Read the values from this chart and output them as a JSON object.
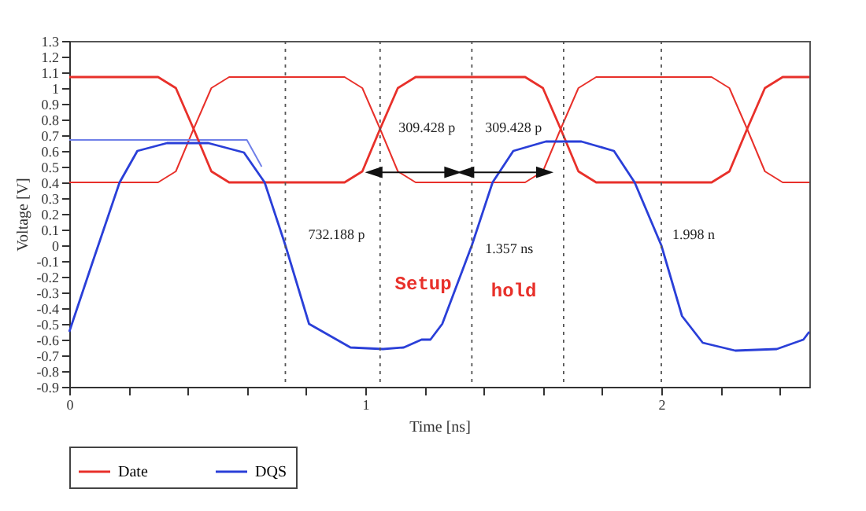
{
  "chart_data": {
    "type": "line",
    "xlabel": "Time [ns]",
    "ylabel": "Voltage [V]",
    "xlim": [
      0,
      2.5
    ],
    "ylim": [
      -0.9,
      1.3
    ],
    "xticks": [
      0,
      {
        "value": 0.2,
        "label": null
      },
      {
        "value": 0.4,
        "label": null
      },
      {
        "value": 0.6,
        "label": null
      },
      {
        "value": 0.8,
        "label": null
      },
      1,
      {
        "value": 1.2,
        "label": null
      },
      {
        "value": 1.4,
        "label": null
      },
      {
        "value": 1.6,
        "label": null
      },
      {
        "value": 1.8,
        "label": null
      },
      2,
      {
        "value": 2.2,
        "label": null
      },
      {
        "value": 2.4,
        "label": null
      }
    ],
    "yticks": [
      -0.9,
      -0.8,
      -0.7,
      -0.6,
      -0.5,
      -0.4,
      -0.3,
      -0.2,
      -0.1,
      0,
      0.1,
      0.2,
      0.3,
      0.4,
      0.5,
      0.6,
      0.7,
      0.8,
      0.9,
      1,
      1.1,
      1.2,
      1.3
    ],
    "grid": false,
    "legend": "bottom",
    "marker": "none",
    "line_style": "solid",
    "series": [
      {
        "name": "Date",
        "color": "#e8302a",
        "x": [
          0,
          0.3,
          0.36,
          0.42,
          0.48,
          0.54,
          0.93,
          0.99,
          1.05,
          1.11,
          1.17,
          1.54,
          1.6,
          1.66,
          1.72,
          1.78,
          2.17,
          2.23,
          2.29,
          2.35,
          2.41,
          2.5
        ],
        "values": [
          1.07,
          1.07,
          1.0,
          0.74,
          0.47,
          0.4,
          0.4,
          0.47,
          0.74,
          1.0,
          1.07,
          1.07,
          1.0,
          0.74,
          0.47,
          0.4,
          0.4,
          0.47,
          0.74,
          1.0,
          1.07,
          1.07
        ]
      },
      {
        "color": "#e8302a",
        "x": [
          0,
          0.3,
          0.36,
          0.42,
          0.48,
          0.54,
          0.93,
          0.99,
          1.05,
          1.11,
          1.17,
          1.54,
          1.6,
          1.66,
          1.72,
          1.78,
          2.17,
          2.23,
          2.29,
          2.35,
          2.41,
          2.5
        ],
        "values": [
          0.4,
          0.4,
          0.47,
          0.74,
          1.0,
          1.07,
          1.07,
          1.0,
          0.74,
          0.47,
          0.4,
          0.4,
          0.47,
          0.74,
          1.0,
          1.07,
          1.07,
          1.0,
          0.74,
          0.47,
          0.4,
          0.4
        ]
      },
      {
        "name": "DQS",
        "color": "#2a3fd8",
        "x": [
          0,
          0.08,
          0.17,
          0.23,
          0.33,
          0.47,
          0.59,
          0.66,
          0.73,
          0.81,
          0.95,
          1.06,
          1.13,
          1.19,
          1.22,
          1.26,
          1.36,
          1.43,
          1.5,
          1.61,
          1.73,
          1.84,
          1.91,
          2.0,
          2.07,
          2.14,
          2.25,
          2.39,
          2.48,
          2.5
        ],
        "values": [
          -0.55,
          -0.1,
          0.4,
          0.6,
          0.65,
          0.65,
          0.59,
          0.4,
          0.0,
          -0.5,
          -0.65,
          -0.66,
          -0.65,
          -0.6,
          -0.6,
          -0.5,
          0.0,
          0.4,
          0.6,
          0.66,
          0.66,
          0.6,
          0.4,
          0.0,
          -0.45,
          -0.62,
          -0.67,
          -0.66,
          -0.6,
          -0.55
        ]
      },
      {
        "color": "#7080e8",
        "x": [
          0,
          0.6,
          0.65
        ],
        "values": [
          0.67,
          0.67,
          0.5
        ]
      }
    ],
    "ref_lines": [
      {
        "axis": "x",
        "value": 0.73,
        "line_style": "dotted"
      },
      {
        "axis": "x",
        "value": 1.05,
        "line_style": "dotted"
      },
      {
        "axis": "x",
        "value": 1.36,
        "line_style": "dotted"
      },
      {
        "axis": "x",
        "value": 1.67,
        "line_style": "dotted"
      },
      {
        "axis": "x",
        "value": 2.0,
        "line_style": "dotted"
      }
    ],
    "annotations": [
      "309.428 p",
      "309.428 p",
      "732.188 p",
      "1.357 ns",
      "1.998 n",
      "Setup",
      "hold"
    ]
  }
}
